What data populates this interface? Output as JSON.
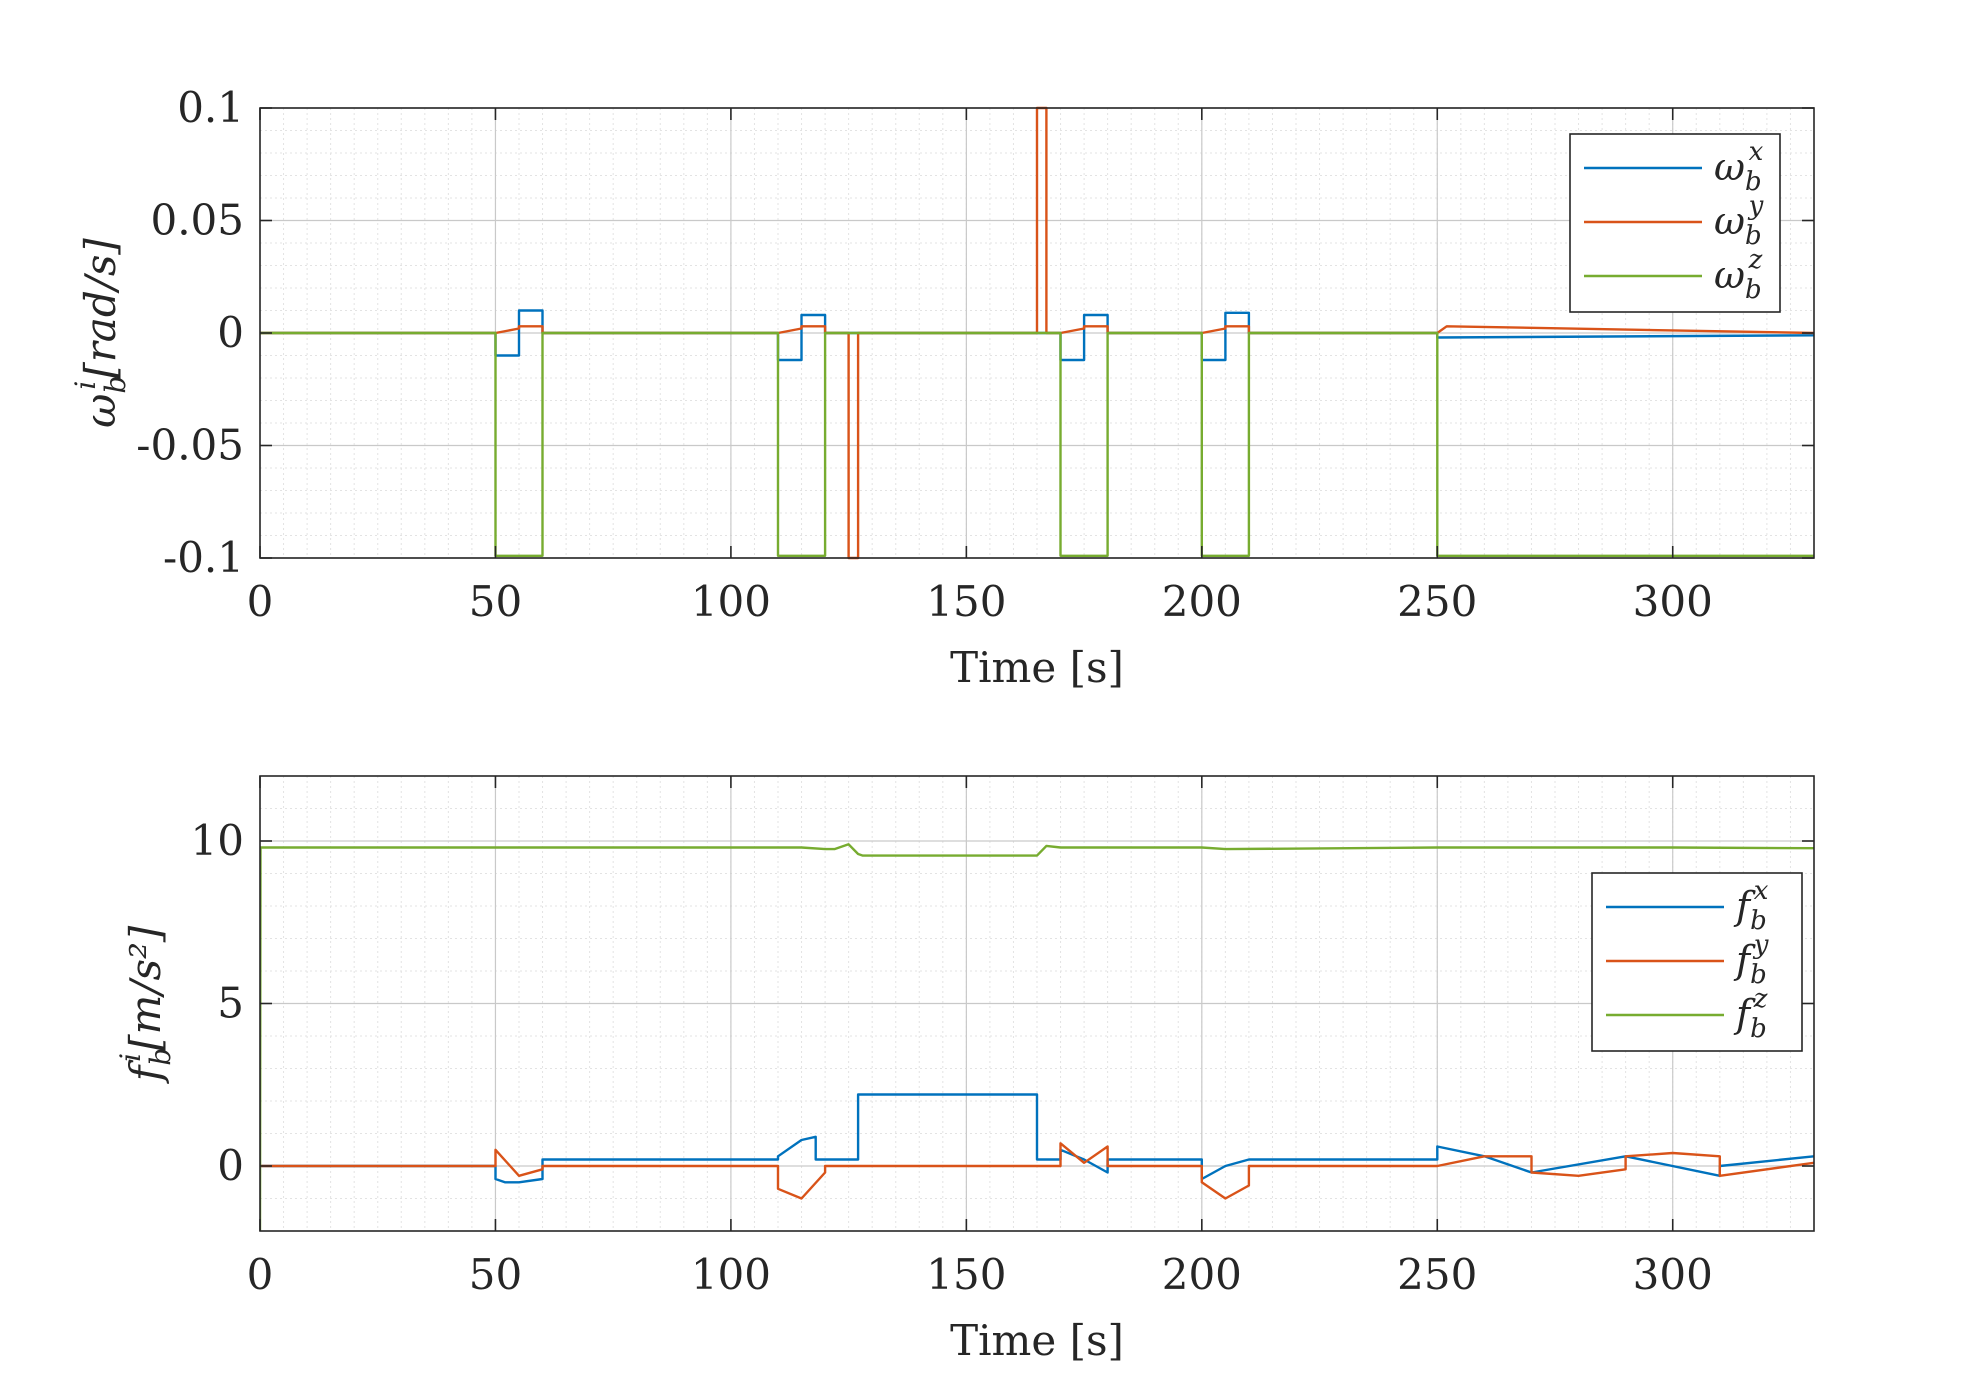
{
  "figure": {
    "background": "#ffffff"
  },
  "chart_data": [
    {
      "type": "line",
      "title": "",
      "xlabel": "Time [s]",
      "ylabel": {
        "base": "ω",
        "sub": "b",
        "sup": "i",
        "unit": "[rad/s]"
      },
      "xlim": [
        0,
        330
      ],
      "ylim": [
        -0.1,
        0.1
      ],
      "xticks": [
        0,
        50,
        100,
        150,
        200,
        250,
        300
      ],
      "xtick_labels": [
        "0",
        "50",
        "100",
        "150",
        "200",
        "250",
        "300"
      ],
      "yticks": [
        -0.1,
        -0.05,
        0,
        0.05,
        0.1
      ],
      "ytick_labels": [
        "-0.1",
        "-0.05",
        "0",
        "0.05",
        "0.1"
      ],
      "grid": true,
      "minor_grid": true,
      "legend": {
        "position": "top-right"
      },
      "series": [
        {
          "name": "ω_b^x",
          "label_base": "ω",
          "label_sub": "b",
          "label_sup": "x",
          "color": "#0072BD",
          "x": [
            0,
            50,
            50,
            55,
            55,
            60,
            60,
            110,
            110,
            115,
            115,
            120,
            120,
            170,
            170,
            175,
            175,
            180,
            180,
            200,
            200,
            205,
            205,
            210,
            210,
            250,
            250,
            330
          ],
          "y": [
            0,
            0,
            -0.01,
            -0.01,
            0.01,
            0.01,
            0,
            0,
            -0.012,
            -0.012,
            0.008,
            0.008,
            0,
            0,
            -0.012,
            -0.012,
            0.008,
            0.008,
            0,
            0,
            -0.012,
            -0.012,
            0.009,
            0.009,
            0,
            0,
            -0.002,
            -0.001
          ]
        },
        {
          "name": "ω_b^y",
          "label_base": "ω",
          "label_sub": "b",
          "label_sup": "y",
          "color": "#D95319",
          "x": [
            0,
            50,
            55,
            55,
            60,
            60,
            110,
            115,
            115,
            120,
            120,
            125,
            125,
            127,
            127,
            165,
            165,
            167,
            167,
            170,
            175,
            175,
            180,
            180,
            200,
            205,
            205,
            210,
            210,
            250,
            252,
            330
          ],
          "y": [
            0,
            0,
            0.002,
            0.003,
            0.003,
            0,
            0,
            0.002,
            0.003,
            0.003,
            0,
            0,
            -0.1,
            -0.1,
            0,
            0,
            0.1,
            0.1,
            0,
            0,
            0.002,
            0.003,
            0.003,
            0,
            0,
            0.002,
            0.003,
            0.003,
            0,
            0,
            0.003,
            0
          ]
        },
        {
          "name": "ω_b^z",
          "label_base": "ω",
          "label_sub": "b",
          "label_sup": "z",
          "color": "#77AC30",
          "x": [
            0,
            50,
            50,
            60,
            60,
            110,
            110,
            120,
            120,
            170,
            170,
            180,
            180,
            200,
            200,
            210,
            210,
            250,
            250,
            330
          ],
          "y": [
            0,
            0,
            -0.099,
            -0.099,
            0,
            0,
            -0.099,
            -0.099,
            0,
            0,
            -0.099,
            -0.099,
            0,
            0,
            -0.099,
            -0.099,
            0,
            0,
            -0.099,
            -0.099
          ]
        }
      ]
    },
    {
      "type": "line",
      "title": "",
      "xlabel": "Time [s]",
      "ylabel": {
        "base": "f",
        "sub": "b",
        "sup": "i",
        "unit": "[m/s²]"
      },
      "xlim": [
        0,
        330
      ],
      "ylim": [
        -2,
        12
      ],
      "xticks": [
        0,
        50,
        100,
        150,
        200,
        250,
        300
      ],
      "xtick_labels": [
        "0",
        "50",
        "100",
        "150",
        "200",
        "250",
        "300"
      ],
      "yticks": [
        0,
        5,
        10
      ],
      "ytick_labels": [
        "0",
        "5",
        "10"
      ],
      "grid": true,
      "minor_grid": true,
      "legend": {
        "position": "right"
      },
      "series": [
        {
          "name": "f_b^x",
          "label_base": "f",
          "label_sub": "b",
          "label_sup": "x",
          "color": "#0072BD",
          "x": [
            0,
            50,
            50,
            52,
            55,
            60,
            60,
            110,
            110,
            115,
            118,
            118,
            120,
            120,
            125,
            127,
            127,
            165,
            165,
            167,
            169,
            170,
            170,
            175,
            180,
            180,
            200,
            200,
            205,
            210,
            210,
            250,
            250,
            260,
            270,
            270,
            290,
            290,
            310,
            310,
            330
          ],
          "y": [
            0,
            0,
            -0.4,
            -0.5,
            -0.5,
            -0.4,
            0.2,
            0.2,
            0.3,
            0.8,
            0.9,
            0.2,
            0.2,
            0.2,
            0.2,
            0.2,
            2.2,
            2.2,
            0.2,
            0.2,
            0.2,
            0.2,
            0.5,
            0.2,
            -0.2,
            0.2,
            0.2,
            -0.4,
            0,
            0.2,
            0.2,
            0.2,
            0.6,
            0.3,
            -0.2,
            -0.2,
            0.3,
            0.3,
            -0.3,
            0,
            0.3
          ]
        },
        {
          "name": "f_b^y",
          "label_base": "f",
          "label_sub": "b",
          "label_sup": "y",
          "color": "#D95319",
          "x": [
            0,
            50,
            50,
            55,
            60,
            60,
            110,
            110,
            115,
            120,
            120,
            170,
            170,
            175,
            180,
            180,
            200,
            200,
            205,
            210,
            210,
            250,
            260,
            270,
            270,
            280,
            290,
            290,
            300,
            310,
            310,
            330
          ],
          "y": [
            0,
            0,
            0.5,
            -0.3,
            -0.1,
            0,
            0,
            -0.7,
            -1.0,
            -0.2,
            0,
            0,
            0.7,
            0.1,
            0.6,
            0,
            0,
            -0.5,
            -1.0,
            -0.6,
            0,
            0,
            0.3,
            0.3,
            -0.2,
            -0.3,
            -0.1,
            0.3,
            0.4,
            0.3,
            -0.3,
            0.1
          ]
        },
        {
          "name": "f_b^z",
          "label_base": "f",
          "label_sub": "b",
          "label_sup": "z",
          "color": "#77AC30",
          "x": [
            0,
            0.1,
            0.5,
            50,
            115,
            120,
            122,
            125,
            127,
            128,
            150,
            165,
            167,
            170,
            200,
            205,
            250,
            300,
            330
          ],
          "y": [
            -2,
            9.8,
            9.8,
            9.8,
            9.8,
            9.75,
            9.75,
            9.9,
            9.6,
            9.55,
            9.55,
            9.55,
            9.85,
            9.8,
            9.8,
            9.75,
            9.8,
            9.8,
            9.78
          ]
        }
      ]
    }
  ]
}
